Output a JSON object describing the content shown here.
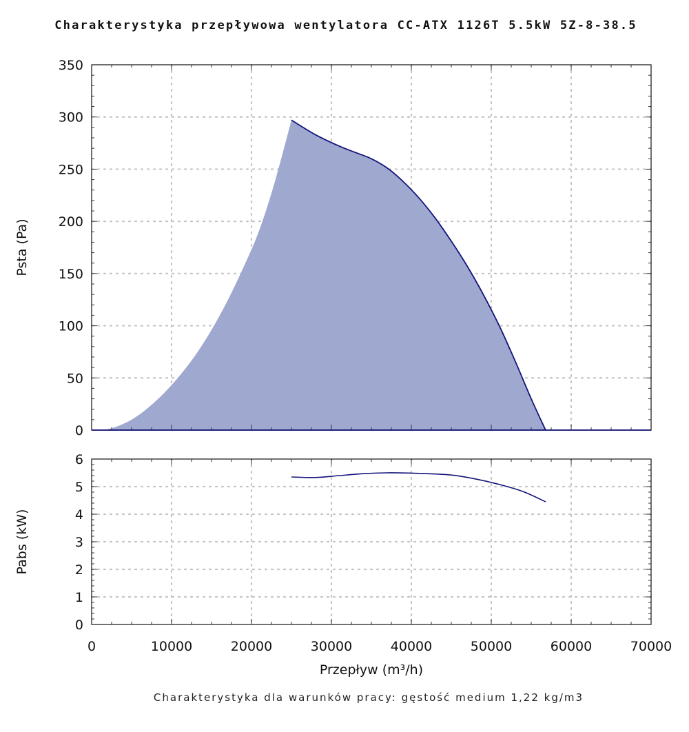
{
  "chart_data": [
    {
      "type": "area",
      "title": "Charakterystyka przepływowa wentylatora CC-ATX 1126T 5.5kW 5Z-8-38.5",
      "ylabel": "Psta (Pa)",
      "xlabel": "",
      "xlim": [
        0,
        70000
      ],
      "ylim": [
        0,
        350
      ],
      "yticks": [
        "0",
        "50",
        "100",
        "150",
        "200",
        "250",
        "300",
        "350"
      ],
      "grid": true,
      "colors": {
        "fill": "#9fa9cf",
        "line": "#13137a"
      },
      "series": [
        {
          "x": [
            25000,
            28000,
            31000,
            33000,
            35000,
            37000,
            39000,
            41000,
            43000,
            45000,
            47000,
            49000,
            51000,
            53000,
            55000,
            56800
          ],
          "y": [
            297,
            283,
            272,
            266,
            260,
            251,
            238,
            222,
            203,
            181,
            157,
            130,
            100,
            66,
            30,
            0
          ]
        }
      ],
      "envelope": {
        "x": [
          1500,
          3000,
          5000,
          7000,
          9000,
          11000,
          13000,
          15000,
          17000,
          19000,
          21000,
          23000,
          25000
        ],
        "y": [
          0,
          3,
          10,
          21,
          35,
          52,
          72,
          96,
          124,
          156,
          192,
          240,
          297
        ]
      }
    },
    {
      "type": "line",
      "ylabel": "Pabs (kW)",
      "xlabel": "Przepływ (m³/h)",
      "xlim": [
        0,
        70000
      ],
      "ylim": [
        0,
        6
      ],
      "xticks": [
        "0",
        "10000",
        "20000",
        "30000",
        "40000",
        "50000",
        "60000",
        "70000"
      ],
      "yticks": [
        "0",
        "1",
        "2",
        "3",
        "4",
        "5",
        "6"
      ],
      "grid": true,
      "colors": {
        "line": "#13137a"
      },
      "series": [
        {
          "x": [
            25000,
            28000,
            31000,
            34000,
            37000,
            40000,
            42000,
            45000,
            48000,
            51000,
            54000,
            56800
          ],
          "y": [
            5.35,
            5.33,
            5.4,
            5.47,
            5.5,
            5.49,
            5.47,
            5.42,
            5.28,
            5.08,
            4.82,
            4.45
          ]
        }
      ]
    }
  ],
  "footer": "Charakterystyka dla warunków pracy: gęstość medium 1,22 kg/m3"
}
